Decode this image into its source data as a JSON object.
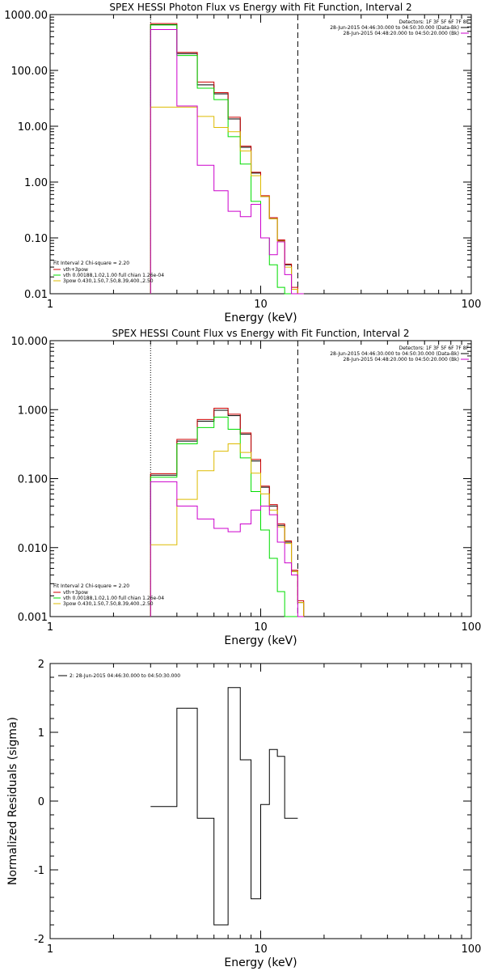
{
  "chart_data": [
    {
      "type": "line",
      "title": "SPEX HESSI Photon Flux vs Energy with Fit Function, Interval 2",
      "xlabel": "Energy (keV)",
      "ylabel": "",
      "xscale": "log",
      "yscale": "log",
      "xlim": [
        1,
        100
      ],
      "ylim": [
        0.01,
        1000
      ],
      "x_tick_labels": [
        "1",
        "10",
        "100"
      ],
      "y_tick_labels": [
        "0.01",
        "0.10",
        "1.00",
        "10.00",
        "100.00",
        "1000.00"
      ],
      "vlines": [
        {
          "x": 3,
          "style": "dotted"
        },
        {
          "x": 15,
          "style": "dashed"
        }
      ],
      "header": {
        "detectors": "Detectors: 1F 3F 5F 6F 7F 8F",
        "line1": "28-Jun-2015 04:46:30.000 to 04:50:30.000 (Data-Bk)",
        "line2": "28-Jun-2015 04:48:20.000 to 04:50:20.000 (Bk)"
      },
      "info": {
        "fit_line": "Fit Interval  2   Chi-square = 2.20",
        "components": "vth+3pow",
        "vth_params": "vth 0.00188,1.02,1.00   full chian 1.26e-04",
        "pow_params": "3pow 0.430,1.50,7.50,8.39,400.,2.50"
      },
      "bin_edges": [
        3.0,
        3.5,
        4.0,
        4.5,
        5.0,
        5.5,
        6.0,
        6.5,
        7.0,
        7.5,
        8.0,
        8.5,
        9.0,
        9.5,
        10.0,
        10.5,
        11.0,
        11.5,
        12.0,
        12.5,
        13.0,
        14.0,
        15.0,
        16.0
      ],
      "series": [
        {
          "name": "data",
          "color": "#000000",
          "values": [
            660,
            660,
            200,
            200,
            55,
            55,
            38,
            38,
            13.5,
            13.5,
            4.2,
            4.2,
            1.45,
            1.45,
            0.55,
            0.55,
            0.22,
            0.22,
            0.09,
            0.09,
            0.033,
            0.012,
            0
          ]
        },
        {
          "name": "vth+3pow",
          "color": "#cc0000",
          "values": [
            690,
            690,
            210,
            210,
            62,
            62,
            40,
            40,
            14.5,
            14.5,
            4.4,
            4.4,
            1.5,
            1.5,
            0.57,
            0.57,
            0.23,
            0.23,
            0.092,
            0.092,
            0.034,
            0.013,
            0
          ]
        },
        {
          "name": "vth",
          "color": "#00dd00",
          "values": [
            650,
            650,
            185,
            185,
            48,
            48,
            30,
            30,
            6.5,
            6.5,
            2.1,
            2.1,
            0.45,
            0.45,
            0.1,
            0.1,
            0.033,
            0.033,
            0.013,
            0.013,
            0,
            0,
            0
          ]
        },
        {
          "name": "3pow",
          "color": "#ddbb00",
          "values": [
            22,
            22,
            22,
            22,
            15,
            15,
            9.5,
            9.5,
            8.0,
            8.0,
            3.6,
            3.6,
            1.3,
            1.3,
            0.55,
            0.55,
            0.22,
            0.22,
            0.088,
            0.088,
            0.03,
            0.012,
            0
          ]
        },
        {
          "name": "Bk",
          "color": "#cc00cc",
          "values": [
            540,
            540,
            23,
            23,
            2.0,
            2.0,
            0.7,
            0.7,
            0.3,
            0.3,
            0.24,
            0.24,
            0.4,
            0.4,
            0.1,
            0.1,
            0.05,
            0.05,
            0.085,
            0.085,
            0.022,
            0,
            0
          ]
        }
      ]
    },
    {
      "type": "line",
      "title": "SPEX HESSI Count Flux vs Energy with Fit Function, Interval 2",
      "xlabel": "Energy (keV)",
      "ylabel": "",
      "xscale": "log",
      "yscale": "log",
      "xlim": [
        1,
        100
      ],
      "ylim": [
        0.001,
        10
      ],
      "x_tick_labels": [
        "1",
        "10",
        "100"
      ],
      "y_tick_labels": [
        "0.001",
        "0.010",
        "0.100",
        "1.000",
        "10.000"
      ],
      "vlines": [
        {
          "x": 3,
          "style": "dotted"
        },
        {
          "x": 15,
          "style": "dashed"
        }
      ],
      "header": {
        "detectors": "Detectors: 1F 3F 5F 6F 7F 8F",
        "line1": "28-Jun-2015 04:46:30.000 to 04:50:30.000 (Data-Bk)",
        "line2": "28-Jun-2015 04:48:20.000 to 04:50:20.000 (Bk)"
      },
      "info": {
        "fit_line": "Fit Interval  2   Chi-square = 2.20",
        "components": "vth+3pow",
        "vth_params": "vth 0.00188,1.02,1.00   full chian 1.26e-04",
        "pow_params": "3pow 0.430,1.50,7.50,8.39,400.,2.50"
      },
      "bin_edges": [
        3.0,
        3.5,
        4.0,
        4.5,
        5.0,
        5.5,
        6.0,
        6.5,
        7.0,
        7.5,
        8.0,
        8.5,
        9.0,
        9.5,
        10.0,
        10.5,
        11.0,
        11.5,
        12.0,
        12.5,
        13.0,
        14.0,
        15.0,
        16.0
      ],
      "series": [
        {
          "name": "data",
          "color": "#000000",
          "values": [
            0.112,
            0.112,
            0.35,
            0.35,
            0.68,
            0.68,
            0.98,
            0.98,
            0.82,
            0.82,
            0.44,
            0.44,
            0.18,
            0.18,
            0.075,
            0.075,
            0.04,
            0.04,
            0.021,
            0.021,
            0.012,
            0.0045,
            0.0016
          ]
        },
        {
          "name": "vth+3pow",
          "color": "#cc0000",
          "values": [
            0.118,
            0.118,
            0.37,
            0.37,
            0.72,
            0.72,
            1.05,
            1.05,
            0.86,
            0.86,
            0.46,
            0.46,
            0.19,
            0.19,
            0.078,
            0.078,
            0.042,
            0.042,
            0.022,
            0.022,
            0.0125,
            0.0047,
            0.0017
          ]
        },
        {
          "name": "vth",
          "color": "#00dd00",
          "values": [
            0.105,
            0.105,
            0.32,
            0.32,
            0.55,
            0.55,
            0.78,
            0.78,
            0.52,
            0.52,
            0.2,
            0.2,
            0.065,
            0.065,
            0.018,
            0.018,
            0.007,
            0.007,
            0.0023,
            0.0023,
            0.0009,
            0,
            0
          ]
        },
        {
          "name": "3pow",
          "color": "#ddbb00",
          "values": [
            0.011,
            0.011,
            0.05,
            0.05,
            0.13,
            0.13,
            0.25,
            0.25,
            0.32,
            0.32,
            0.24,
            0.24,
            0.12,
            0.12,
            0.06,
            0.06,
            0.035,
            0.035,
            0.02,
            0.02,
            0.0115,
            0.0045,
            0.0016
          ]
        },
        {
          "name": "Bk",
          "color": "#cc00cc",
          "values": [
            0.09,
            0.09,
            0.04,
            0.04,
            0.026,
            0.026,
            0.019,
            0.019,
            0.017,
            0.017,
            0.022,
            0.022,
            0.035,
            0.035,
            0.04,
            0.04,
            0.03,
            0.03,
            0.012,
            0.012,
            0.006,
            0.004,
            0
          ]
        }
      ]
    },
    {
      "type": "line",
      "title": "",
      "xlabel": "Energy (keV)",
      "ylabel": "Normalized Residuals (sigma)",
      "xscale": "log",
      "yscale": "linear",
      "xlim": [
        1,
        100
      ],
      "ylim": [
        -2,
        2
      ],
      "x_tick_labels": [
        "1",
        "10",
        "100"
      ],
      "y_tick_labels": [
        "-2",
        "-1",
        "0",
        "1",
        "2"
      ],
      "legend_text": "2: 28-Jun-2015 04:46:30.000 to 04:50:30.000",
      "bin_edges": [
        3.0,
        3.5,
        4.0,
        4.5,
        5.0,
        5.5,
        6.0,
        6.5,
        7.0,
        7.5,
        8.0,
        8.5,
        9.0,
        9.5,
        10.0,
        10.5,
        11.0,
        11.5,
        12.0,
        12.5,
        13.0,
        14.0,
        15.0
      ],
      "series": [
        {
          "name": "",
          "color": "#000000",
          "values": [
            -0.08,
            -0.08,
            1.35,
            1.35,
            -0.25,
            -0.25,
            -1.8,
            -1.8,
            1.65,
            1.65,
            0.6,
            0.6,
            -1.42,
            -1.42,
            -0.05,
            -0.05,
            0.75,
            0.75,
            0.65,
            0.65,
            -0.25,
            -0.25
          ]
        }
      ]
    }
  ]
}
